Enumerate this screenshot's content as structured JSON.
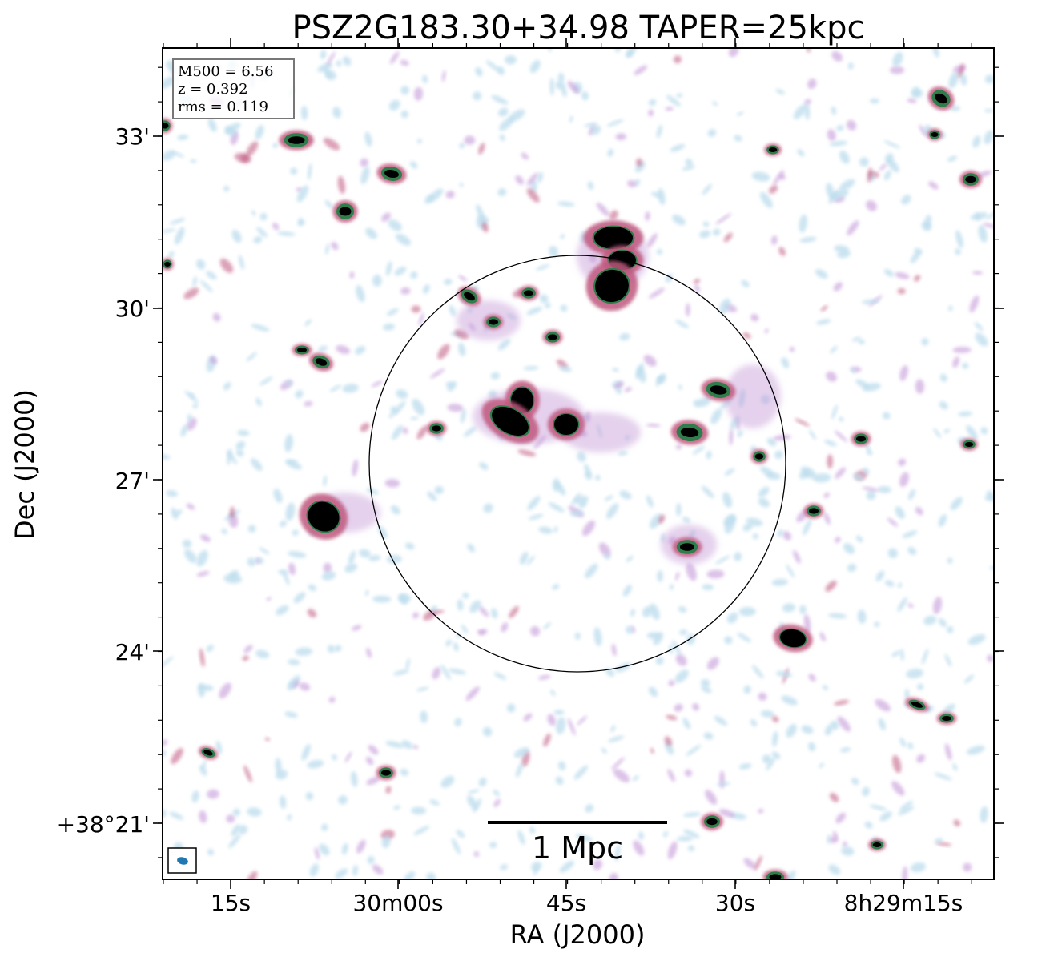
{
  "title": "PSZ2G183.30+34.98 TAPER=25kpc",
  "xlabel": "RA (J2000)",
  "ylabel": "Dec (J2000)",
  "info_box": {
    "m500": "M500 = 6.56",
    "z": "z = 0.392",
    "rms": "rms = 0.119"
  },
  "scale_bar_label": "1 Mpc",
  "x_ticks": [
    "15s",
    "30m00s",
    "45s",
    "30s",
    "8h29m15s"
  ],
  "y_ticks": [
    "33'",
    "30'",
    "27'",
    "24'",
    "+38°21'"
  ],
  "colors": {
    "faint_emission": "#bcdcec",
    "mid_emission": "#c59ad8",
    "bright_emission": "#c0587e",
    "source_core": "#000000",
    "source_ring": "#2e7d4a",
    "beam": "#1f77b4"
  }
}
